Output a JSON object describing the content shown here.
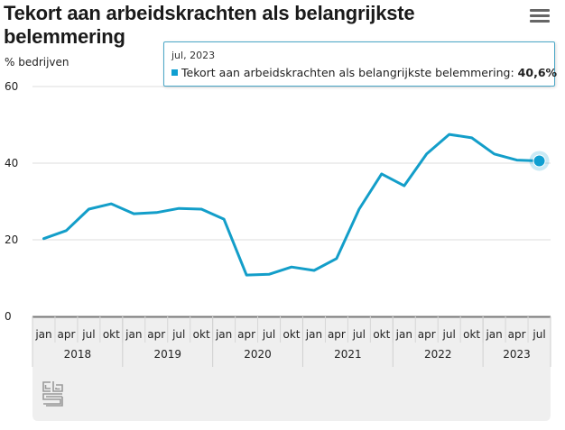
{
  "header": {
    "title": "Tekort aan arbeidskrachten als belangrijkste belemmering",
    "menu_icon": "hamburger-menu-icon"
  },
  "tooltip": {
    "date": "jul, 2023",
    "series_label": "Tekort aan arbeidskrachten als belangrijkste belemmering:",
    "value_label": "40,6%"
  },
  "colors": {
    "series": "#139ec9",
    "marker": "#0f9fd1",
    "axis_band": "#efefef"
  },
  "logo": "cbs-logo-icon",
  "chart_data": {
    "type": "line",
    "title": "Tekort aan arbeidskrachten als belangrijkste belemmering",
    "ylabel": "% bedrijven",
    "xlabel": "",
    "ylim": [
      0,
      60
    ],
    "yticks": [
      0,
      20,
      40,
      60
    ],
    "grid": true,
    "legend": "none",
    "x": [
      "jan 2018",
      "apr 2018",
      "jul 2018",
      "okt 2018",
      "jan 2019",
      "apr 2019",
      "jul 2019",
      "okt 2019",
      "jan 2020",
      "apr 2020",
      "jul 2020",
      "okt 2020",
      "jan 2021",
      "apr 2021",
      "jul 2021",
      "okt 2021",
      "jan 2022",
      "apr 2022",
      "jul 2022",
      "okt 2022",
      "jan 2023",
      "apr 2023",
      "jul 2023"
    ],
    "quarter_labels": [
      "jan",
      "apr",
      "jul",
      "okt",
      "jan",
      "apr",
      "jul",
      "okt",
      "jan",
      "apr",
      "jul",
      "okt",
      "jan",
      "apr",
      "jul",
      "okt",
      "jan",
      "apr",
      "jul",
      "okt",
      "jan",
      "apr",
      "jul"
    ],
    "year_labels": [
      "2018",
      "2019",
      "2020",
      "2021",
      "2022",
      "2023"
    ],
    "series": [
      {
        "name": "Tekort aan arbeidskrachten als belangrijkste belemmering",
        "values": [
          20.3,
          22.4,
          28.0,
          29.4,
          26.8,
          27.1,
          28.2,
          28.0,
          25.4,
          10.8,
          11.0,
          12.9,
          12.0,
          15.1,
          28.0,
          37.2,
          34.1,
          42.4,
          47.5,
          46.6,
          42.4,
          40.8,
          40.6
        ]
      }
    ],
    "highlighted_point": {
      "x": "jul 2023",
      "value": 40.6
    }
  }
}
